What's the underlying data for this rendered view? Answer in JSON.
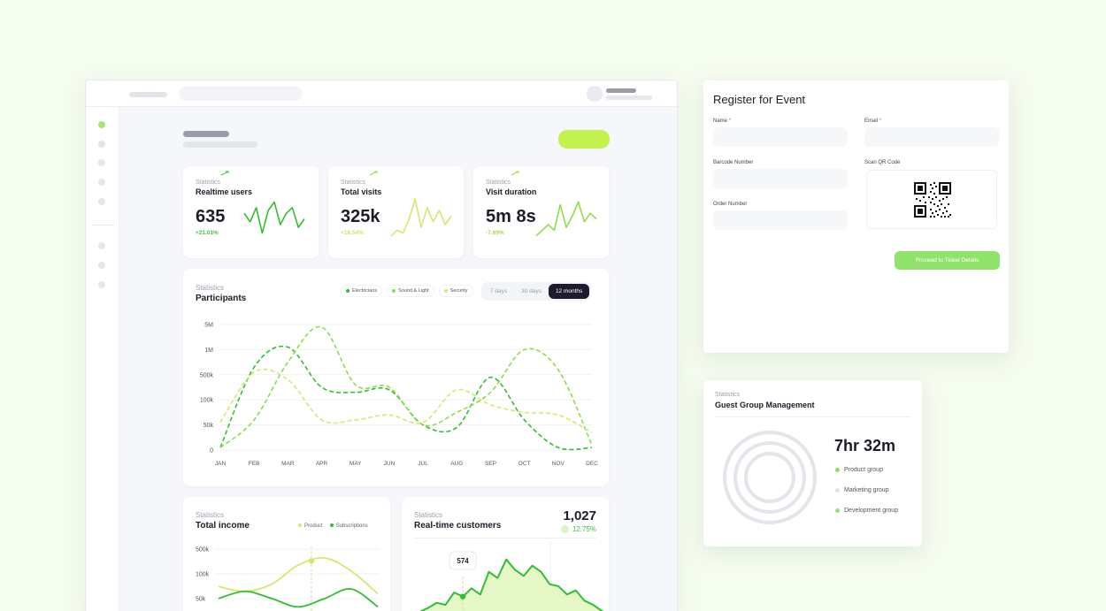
{
  "colors": {
    "accent": "#c2f24c",
    "green": "#2fbf2f",
    "lime": "#8edc4a",
    "pale": "#d4e86f",
    "dark": "#1d1b2e"
  },
  "stats": [
    {
      "label": "Statistics",
      "title": "Realtime users",
      "value": "635",
      "delta": "+21.01%",
      "delta_color": "#3cc23c",
      "spark": [
        18,
        12,
        22,
        4,
        20,
        26,
        10,
        18,
        22,
        8,
        14
      ]
    },
    {
      "label": "Statistics",
      "title": "Total visits",
      "value": "325k",
      "delta": "+18.54%",
      "delta_color": "#c4e86a",
      "spark": [
        2,
        6,
        4,
        14,
        28,
        8,
        22,
        12,
        20,
        10,
        16
      ]
    },
    {
      "label": "Statistics",
      "title": "Visit duration",
      "value": "5m 8s",
      "delta": "-7.69%",
      "delta_color": "#a8d94e",
      "spark": [
        2,
        6,
        10,
        6,
        24,
        8,
        16,
        26,
        12,
        18,
        14
      ]
    }
  ],
  "participants": {
    "label": "Statistics",
    "title": "Participants",
    "legend": [
      {
        "name": "Electricians",
        "color": "#2fbf2f"
      },
      {
        "name": "Sound & Light",
        "color": "#8edc4a"
      },
      {
        "name": "Security",
        "color": "#d4e86f"
      }
    ],
    "ranges": [
      {
        "label": "7 days",
        "active": false
      },
      {
        "label": "30 days",
        "active": false
      },
      {
        "label": "12 months",
        "active": true
      }
    ]
  },
  "chart_data": [
    {
      "type": "line",
      "title": "Participants",
      "categories": [
        "JAN",
        "FEB",
        "MAR",
        "APR",
        "MAY",
        "JUN",
        "JUL",
        "AUG",
        "SEP",
        "OCT",
        "NOV",
        "DEC"
      ],
      "y_ticks": [
        "0",
        "50k",
        "100k",
        "500k",
        "1M",
        "5M"
      ],
      "series": [
        {
          "name": "Electricians",
          "values": [
            0.1,
            3.3,
            4.1,
            2.5,
            2.3,
            2.4,
            1.0,
            0.9,
            2.9,
            1.2,
            0.1,
            0.1
          ],
          "style": "dashed"
        },
        {
          "name": "Sound & Light",
          "values": [
            0.1,
            1.2,
            3.5,
            4.9,
            2.6,
            2.5,
            1.0,
            1.5,
            2.3,
            4.0,
            3.2,
            0.2
          ],
          "style": "dashed"
        },
        {
          "name": "Security",
          "values": [
            1.1,
            3.1,
            2.8,
            1.2,
            1.2,
            1.4,
            1.1,
            2.4,
            1.8,
            1.5,
            1.4,
            0.7
          ],
          "style": "dashed"
        }
      ]
    },
    {
      "type": "line",
      "title": "Total income",
      "y_ticks": [
        "500k",
        "100k",
        "50k"
      ],
      "series": [
        {
          "name": "Product",
          "values": [
            110,
            90,
            120,
            200,
            230,
            175,
            80
          ]
        },
        {
          "name": "Subscriptions",
          "values": [
            60,
            90,
            60,
            25,
            60,
            100,
            25
          ]
        }
      ]
    },
    {
      "type": "area",
      "title": "Real-time customers",
      "tooltip": "574",
      "values": [
        5,
        9,
        14,
        12,
        24,
        20,
        28,
        22,
        44,
        38,
        56,
        46,
        40,
        50,
        44,
        32,
        30,
        22,
        26,
        16,
        12,
        6,
        2
      ]
    }
  ],
  "income": {
    "label": "Statistics",
    "title": "Total income",
    "legend": [
      {
        "name": "Product",
        "color": "#d4e86f"
      },
      {
        "name": "Subscriptions",
        "color": "#2fbf2f"
      }
    ]
  },
  "customers": {
    "label": "Statistics",
    "title": "Real-time customers",
    "value": "1,027",
    "delta": "12.75%"
  },
  "register": {
    "title": "Register for Event",
    "name_label": "Name",
    "email_label": "Email",
    "required_mark": "*",
    "barcode_label": "Barcode Number",
    "qr_label": "Scan QR Code",
    "order_label": "Order Number",
    "proceed_label": "Proceed to Ticket Details"
  },
  "guest": {
    "label": "Statistics",
    "title": "Guest Group Management",
    "value": "7hr 32m",
    "groups": [
      {
        "name": "Product group",
        "color": "#8edc6a"
      },
      {
        "name": "Marketing group",
        "color": "#e0e7dc"
      },
      {
        "name": "Development group",
        "color": "#9fdc7a"
      }
    ]
  }
}
